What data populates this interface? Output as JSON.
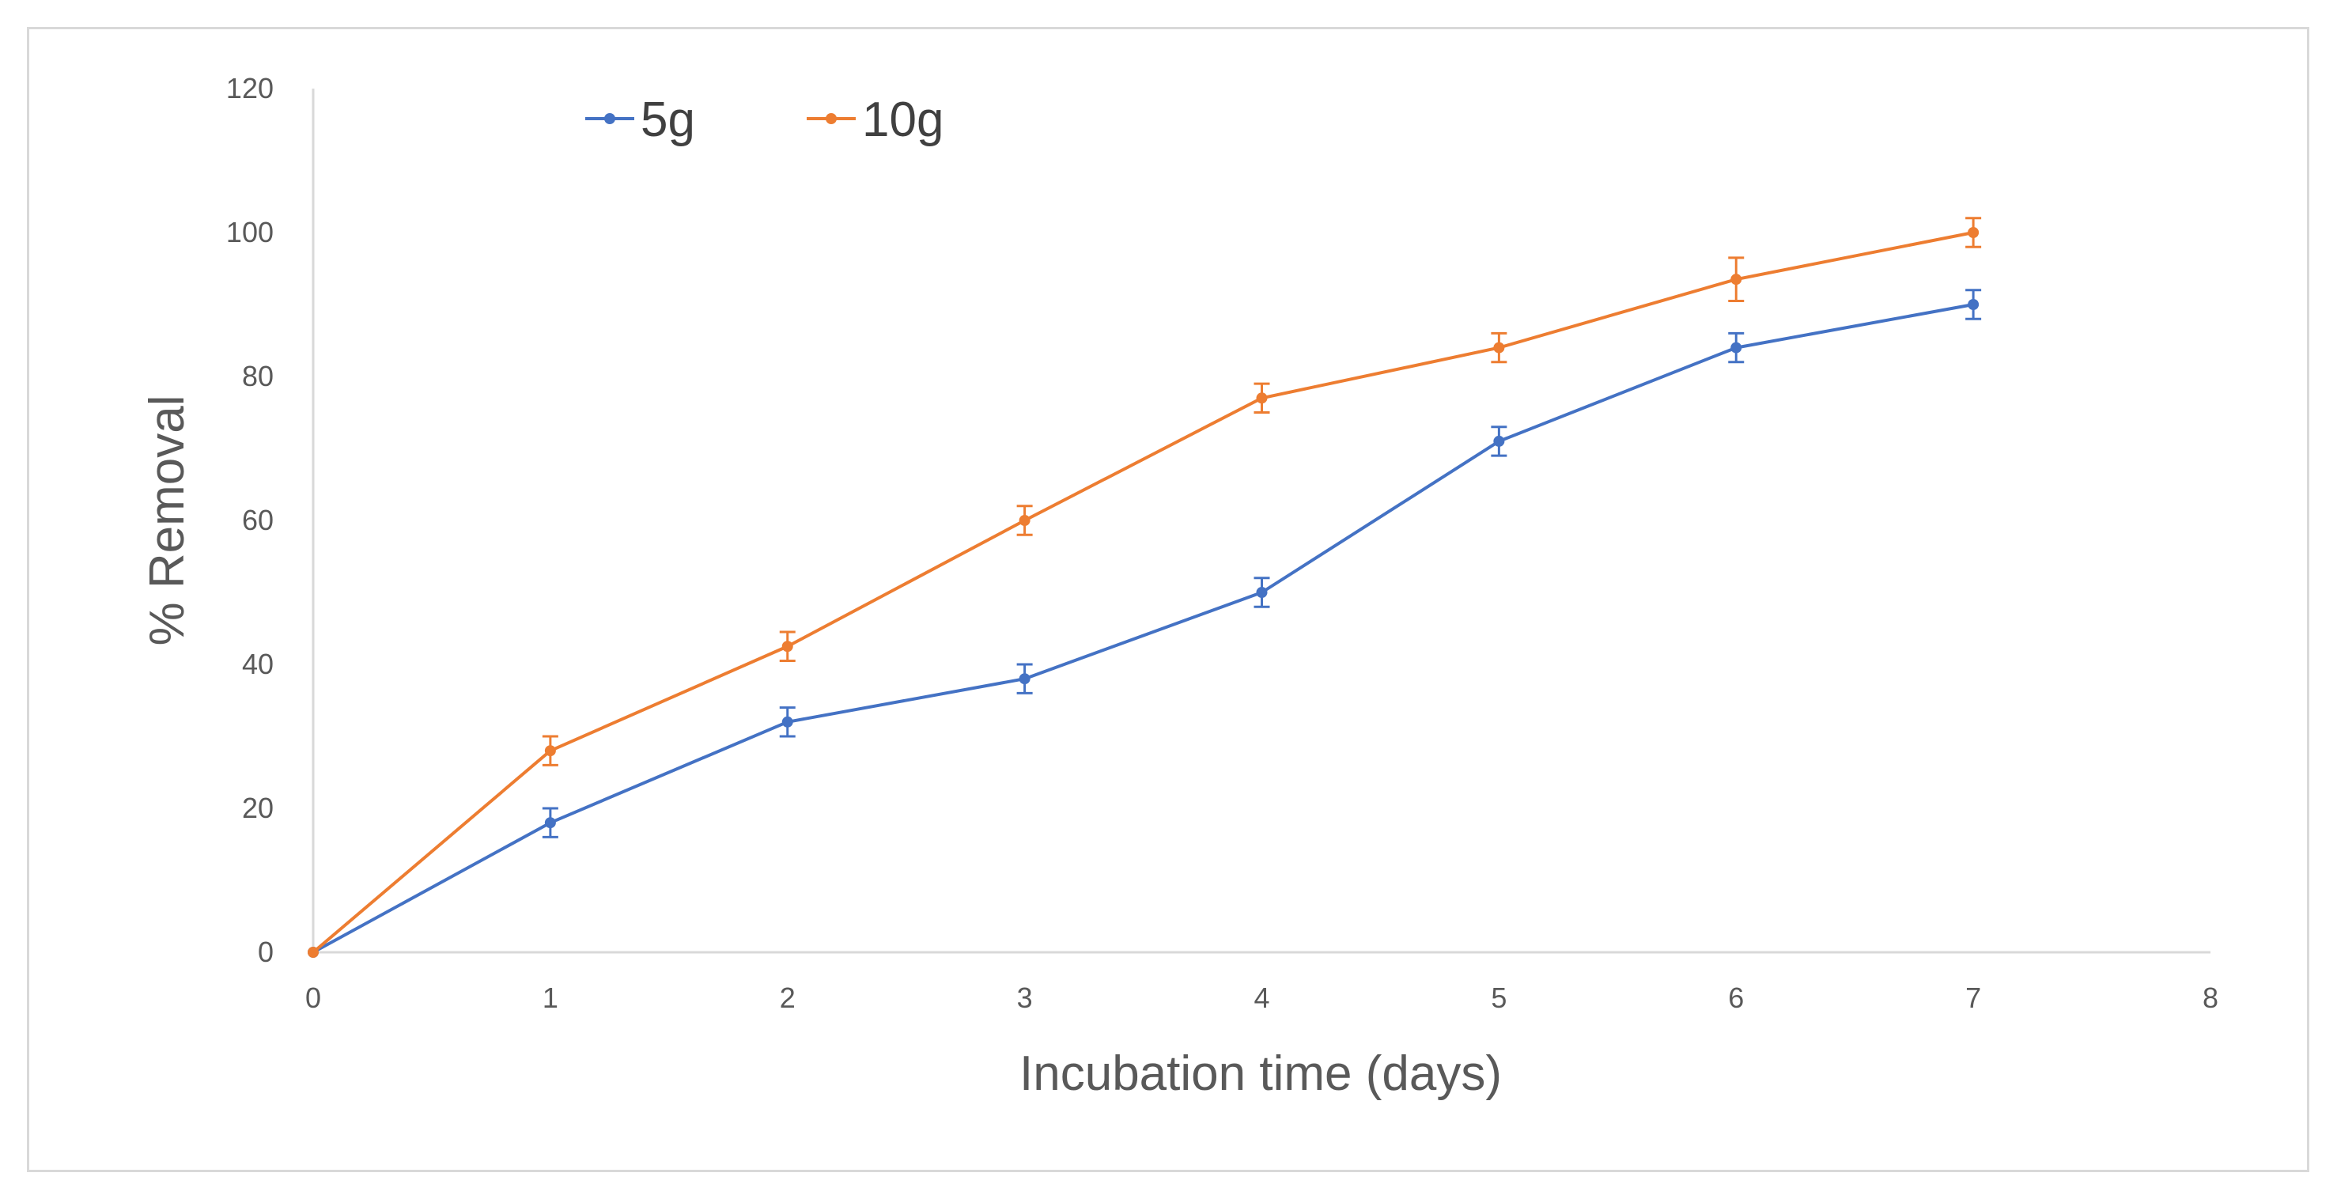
{
  "chart_data": {
    "type": "line",
    "xlabel": "Incubation time (days)",
    "ylabel": "% Removal",
    "xlim": [
      0,
      8
    ],
    "ylim": [
      0,
      120
    ],
    "x_ticks": [
      0,
      1,
      2,
      3,
      4,
      5,
      6,
      7,
      8
    ],
    "y_ticks": [
      0,
      20,
      40,
      60,
      80,
      100,
      120
    ],
    "grid": false,
    "legend_position": "top-left",
    "x": [
      0,
      1,
      2,
      3,
      4,
      5,
      6,
      7
    ],
    "series": [
      {
        "name": "5g",
        "color": "#4472C4",
        "values": [
          0,
          18,
          32,
          38,
          50,
          71,
          84,
          90
        ],
        "error": [
          0,
          2,
          2,
          2,
          2,
          2,
          2,
          2
        ]
      },
      {
        "name": "10g",
        "color": "#ED7D31",
        "values": [
          0,
          28,
          42.5,
          60,
          77,
          84,
          93.5,
          100
        ],
        "error": [
          0,
          2,
          2,
          2,
          2,
          2,
          3,
          2
        ]
      }
    ]
  }
}
